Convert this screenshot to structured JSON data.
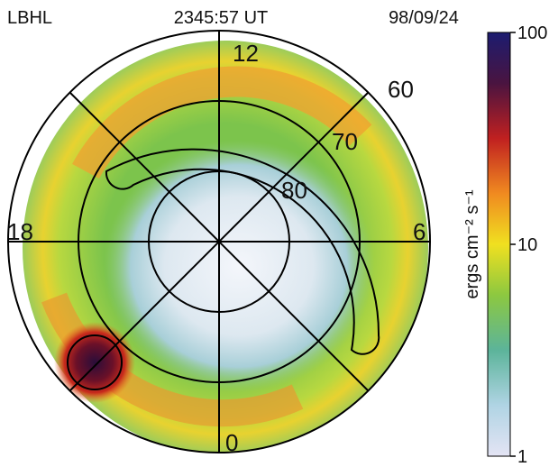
{
  "header": {
    "instrument": "LBHL",
    "time": "2345:57 UT",
    "date": "98/09/24"
  },
  "plot": {
    "mlt_labels": [
      "12",
      "6",
      "18",
      "0"
    ],
    "latitudes": [
      60,
      70,
      80
    ]
  },
  "colorbar": {
    "label": "ergs cm⁻² s⁻¹",
    "scale": "log",
    "lim": [
      1,
      100
    ],
    "ticks": [
      1,
      10,
      100
    ]
  }
}
